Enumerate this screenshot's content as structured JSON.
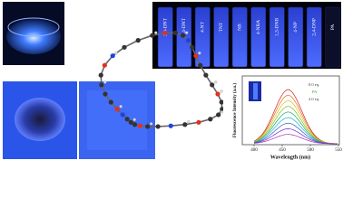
{
  "vials": {
    "labels": [
      "2,6-DNT",
      "2,4-DNT",
      "4-NT",
      "TNT",
      "NB",
      "4-NBA",
      "1,3-DNB",
      "4-NP",
      "2,4-DNP",
      "PA"
    ]
  },
  "spectrum": {
    "x_label": "Wavelength (nm)",
    "y_label": "Fluorescence Intensity (a.u.)",
    "x_ticks": [
      400,
      450,
      500,
      550
    ],
    "legend": [
      "0.0 eq.",
      "PA",
      "2.0 eq."
    ]
  }
}
